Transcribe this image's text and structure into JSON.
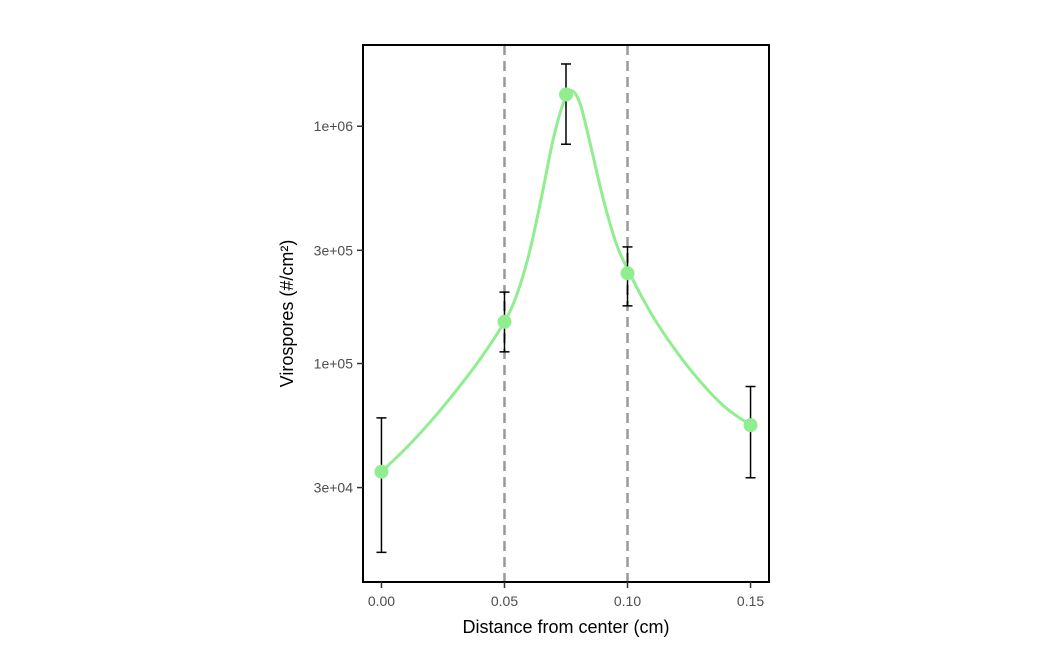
{
  "chart_data": {
    "type": "scatter",
    "xlabel": "Distance from center (cm)",
    "ylabel": "Virospores (#/cm²)",
    "x_ticks": [
      {
        "value": 0.0,
        "label": "0.00"
      },
      {
        "value": 0.05,
        "label": "0.05"
      },
      {
        "value": 0.1,
        "label": "0.10"
      },
      {
        "value": 0.15,
        "label": "0.15"
      }
    ],
    "y_ticks": [
      {
        "value": 30000,
        "label": "3e+04"
      },
      {
        "value": 100000,
        "label": "1e+05"
      },
      {
        "value": 300000,
        "label": "3e+05"
      },
      {
        "value": 1000000,
        "label": "1e+06"
      }
    ],
    "y_scale": "log10",
    "xlim": [
      -0.0075,
      0.1575
    ],
    "ylim": [
      12000,
      2200000
    ],
    "vlines": [
      0.05,
      0.1
    ],
    "grid": false,
    "colors": {
      "points": "#90ee90",
      "curve": "#90ee90",
      "error_bars": "#000000",
      "vlines": "#999999"
    },
    "series": [
      {
        "points": [
          {
            "x": 0.0,
            "y": 35000,
            "ymin": 16000,
            "ymax": 59000
          },
          {
            "x": 0.05,
            "y": 150000,
            "ymin": 112000,
            "ymax": 200000
          },
          {
            "x": 0.075,
            "y": 1360000,
            "ymin": 840000,
            "ymax": 1830000
          },
          {
            "x": 0.1,
            "y": 240000,
            "ymin": 175000,
            "ymax": 310000
          },
          {
            "x": 0.15,
            "y": 55000,
            "ymin": 33000,
            "ymax": 80000
          }
        ]
      }
    ],
    "fit_curve": [
      [
        0.0,
        35000
      ],
      [
        0.01,
        44000
      ],
      [
        0.02,
        57000
      ],
      [
        0.03,
        76000
      ],
      [
        0.04,
        104000
      ],
      [
        0.05,
        150000
      ],
      [
        0.055,
        195000
      ],
      [
        0.06,
        290000
      ],
      [
        0.065,
        500000
      ],
      [
        0.07,
        900000
      ],
      [
        0.075,
        1340000
      ],
      [
        0.078,
        1400000
      ],
      [
        0.081,
        1220000
      ],
      [
        0.085,
        830000
      ],
      [
        0.09,
        500000
      ],
      [
        0.095,
        330000
      ],
      [
        0.1,
        250000
      ],
      [
        0.11,
        160000
      ],
      [
        0.12,
        112000
      ],
      [
        0.13,
        83000
      ],
      [
        0.14,
        65000
      ],
      [
        0.15,
        55000
      ]
    ]
  }
}
